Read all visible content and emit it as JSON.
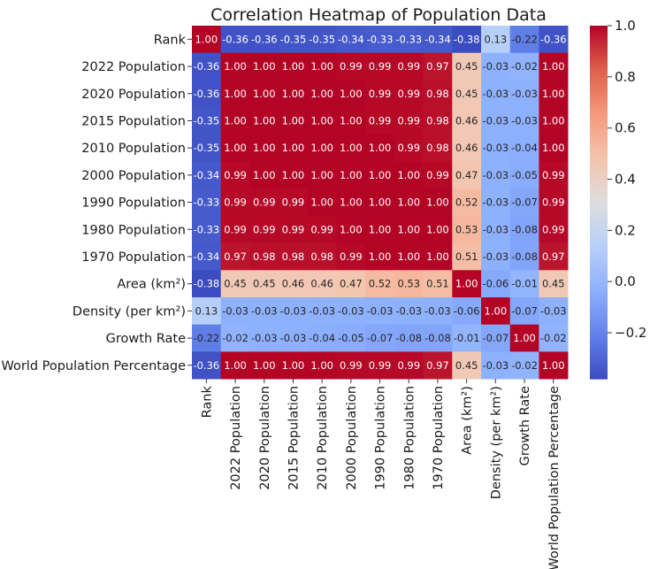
{
  "chart_data": {
    "type": "heatmap",
    "title": "Correlation Heatmap of Population Data",
    "xlabel": "",
    "ylabel": "",
    "labels": [
      "Rank",
      "2022 Population",
      "2020 Population",
      "2015 Population",
      "2010 Population",
      "2000 Population",
      "1990 Population",
      "1980 Population",
      "1970 Population",
      "Area (km²)",
      "Density (per km²)",
      "Growth Rate",
      "World Population Percentage"
    ],
    "matrix": [
      [
        1.0,
        -0.36,
        -0.36,
        -0.35,
        -0.35,
        -0.34,
        -0.33,
        -0.33,
        -0.34,
        -0.38,
        0.13,
        -0.22,
        -0.36
      ],
      [
        -0.36,
        1.0,
        1.0,
        1.0,
        1.0,
        0.99,
        0.99,
        0.99,
        0.97,
        0.45,
        -0.03,
        -0.02,
        1.0
      ],
      [
        -0.36,
        1.0,
        1.0,
        1.0,
        1.0,
        1.0,
        0.99,
        0.99,
        0.98,
        0.45,
        -0.03,
        -0.03,
        1.0
      ],
      [
        -0.35,
        1.0,
        1.0,
        1.0,
        1.0,
        1.0,
        0.99,
        0.99,
        0.98,
        0.46,
        -0.03,
        -0.03,
        1.0
      ],
      [
        -0.35,
        1.0,
        1.0,
        1.0,
        1.0,
        1.0,
        1.0,
        0.99,
        0.98,
        0.46,
        -0.03,
        -0.04,
        1.0
      ],
      [
        -0.34,
        0.99,
        1.0,
        1.0,
        1.0,
        1.0,
        1.0,
        1.0,
        0.99,
        0.47,
        -0.03,
        -0.05,
        0.99
      ],
      [
        -0.33,
        0.99,
        0.99,
        0.99,
        1.0,
        1.0,
        1.0,
        1.0,
        1.0,
        0.52,
        -0.03,
        -0.07,
        0.99
      ],
      [
        -0.33,
        0.99,
        0.99,
        0.99,
        0.99,
        1.0,
        1.0,
        1.0,
        1.0,
        0.53,
        -0.03,
        -0.08,
        0.99
      ],
      [
        -0.34,
        0.97,
        0.98,
        0.98,
        0.98,
        0.99,
        1.0,
        1.0,
        1.0,
        0.51,
        -0.03,
        -0.08,
        0.97
      ],
      [
        -0.38,
        0.45,
        0.45,
        0.46,
        0.46,
        0.47,
        0.52,
        0.53,
        0.51,
        1.0,
        -0.06,
        -0.01,
        0.45
      ],
      [
        0.13,
        -0.03,
        -0.03,
        -0.03,
        -0.03,
        -0.03,
        -0.03,
        -0.03,
        -0.03,
        -0.06,
        1.0,
        -0.07,
        -0.03
      ],
      [
        -0.22,
        -0.02,
        -0.03,
        -0.03,
        -0.04,
        -0.05,
        -0.07,
        -0.08,
        -0.08,
        -0.01,
        -0.07,
        1.0,
        -0.02
      ],
      [
        -0.36,
        1.0,
        1.0,
        1.0,
        1.0,
        0.99,
        0.99,
        0.99,
        0.97,
        0.45,
        -0.03,
        -0.02,
        1.0
      ]
    ],
    "colorscale": "coolwarm",
    "vmin": -0.38,
    "vmax": 1.0,
    "colorbar_ticks": [
      -0.2,
      0.0,
      0.2,
      0.4,
      0.6,
      0.8,
      1.0
    ],
    "annotations": "two-decimal values in each cell"
  }
}
